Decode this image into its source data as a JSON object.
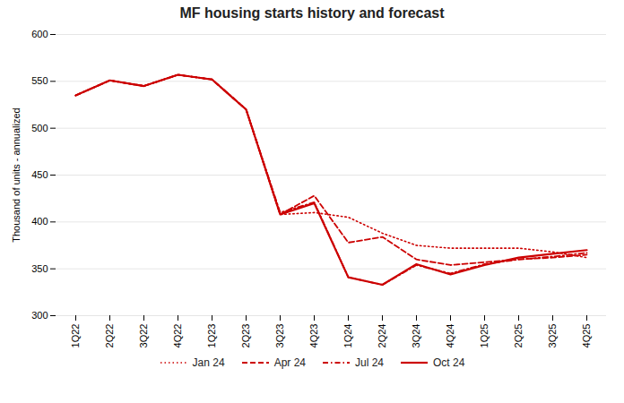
{
  "chart_data": {
    "type": "line",
    "title": "MF housing starts history and forecast",
    "ylabel": "Thousand of units - annualized",
    "categories": [
      "1Q22",
      "2Q22",
      "3Q22",
      "4Q22",
      "1Q23",
      "2Q23",
      "3Q23",
      "4Q23",
      "1Q24",
      "2Q24",
      "3Q24",
      "4Q24",
      "1Q25",
      "2Q25",
      "3Q25",
      "4Q25"
    ],
    "series": [
      {
        "name": "Jan 24",
        "color": "#cc0000",
        "line_style": "dotted",
        "values": [
          535,
          551,
          545,
          557,
          552,
          520,
          408,
          410,
          405,
          388,
          375,
          372,
          372,
          372,
          368,
          362
        ]
      },
      {
        "name": "Apr 24",
        "color": "#cc0000",
        "line_style": "dashed",
        "values": [
          535,
          551,
          545,
          557,
          552,
          520,
          408,
          428,
          378,
          384,
          360,
          354,
          357,
          360,
          362,
          365
        ]
      },
      {
        "name": "Jul 24",
        "color": "#cc0000",
        "line_style": "dashdot",
        "values": [
          535,
          551,
          545,
          557,
          552,
          520,
          410,
          421,
          341,
          333,
          354,
          345,
          355,
          360,
          363,
          367
        ]
      },
      {
        "name": "Oct 24",
        "color": "#cc0000",
        "line_style": "solid",
        "values": [
          535,
          551,
          545,
          557,
          552,
          520,
          408,
          420,
          341,
          333,
          355,
          344,
          354,
          362,
          366,
          370
        ]
      }
    ],
    "ylim": [
      300,
      600
    ],
    "yticks": [
      300,
      350,
      400,
      450,
      500,
      550,
      600
    ],
    "grid": true,
    "legend": "bottom"
  }
}
